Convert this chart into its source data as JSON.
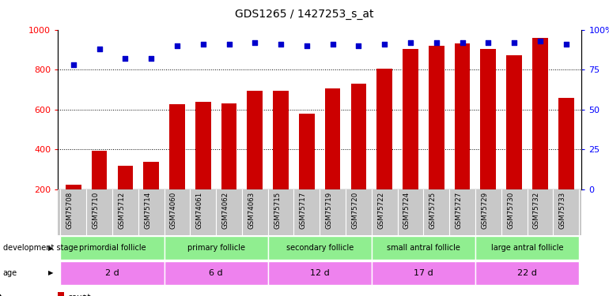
{
  "title": "GDS1265 / 1427253_s_at",
  "samples": [
    "GSM75708",
    "GSM75710",
    "GSM75712",
    "GSM75714",
    "GSM74060",
    "GSM74061",
    "GSM74062",
    "GSM74063",
    "GSM75715",
    "GSM75717",
    "GSM75719",
    "GSM75720",
    "GSM75722",
    "GSM75724",
    "GSM75725",
    "GSM75727",
    "GSM75729",
    "GSM75730",
    "GSM75732",
    "GSM75733"
  ],
  "counts": [
    225,
    395,
    320,
    340,
    625,
    640,
    630,
    695,
    695,
    580,
    705,
    730,
    805,
    905,
    920,
    930,
    905,
    870,
    960,
    660
  ],
  "percentile_ranks": [
    78,
    88,
    82,
    82,
    90,
    91,
    91,
    92,
    91,
    90,
    91,
    90,
    91,
    92,
    92,
    92,
    92,
    92,
    93,
    91
  ],
  "groups": [
    {
      "label": "primordial follicle",
      "age": "2 d",
      "indices": [
        0,
        1,
        2,
        3
      ]
    },
    {
      "label": "primary follicle",
      "age": "6 d",
      "indices": [
        4,
        5,
        6,
        7
      ]
    },
    {
      "label": "secondary follicle",
      "age": "12 d",
      "indices": [
        8,
        9,
        10,
        11
      ]
    },
    {
      "label": "small antral follicle",
      "age": "17 d",
      "indices": [
        12,
        13,
        14,
        15
      ]
    },
    {
      "label": "large antral follicle",
      "age": "22 d",
      "indices": [
        16,
        17,
        18,
        19
      ]
    }
  ],
  "stage_color": "#90EE90",
  "age_color": "#EE82EE",
  "bar_color": "#CC0000",
  "scatter_color": "#0000CC",
  "ylim_left": [
    200,
    1000
  ],
  "ylim_right": [
    0,
    100
  ],
  "yticks_left": [
    200,
    400,
    600,
    800,
    1000
  ],
  "yticks_right": [
    0,
    25,
    50,
    75,
    100
  ],
  "ytick_right_labels": [
    "0",
    "25",
    "50",
    "75",
    "100%"
  ],
  "grid_values": [
    400,
    600,
    800
  ],
  "bar_width": 0.6,
  "xtick_bg_color": "#C8C8C8"
}
